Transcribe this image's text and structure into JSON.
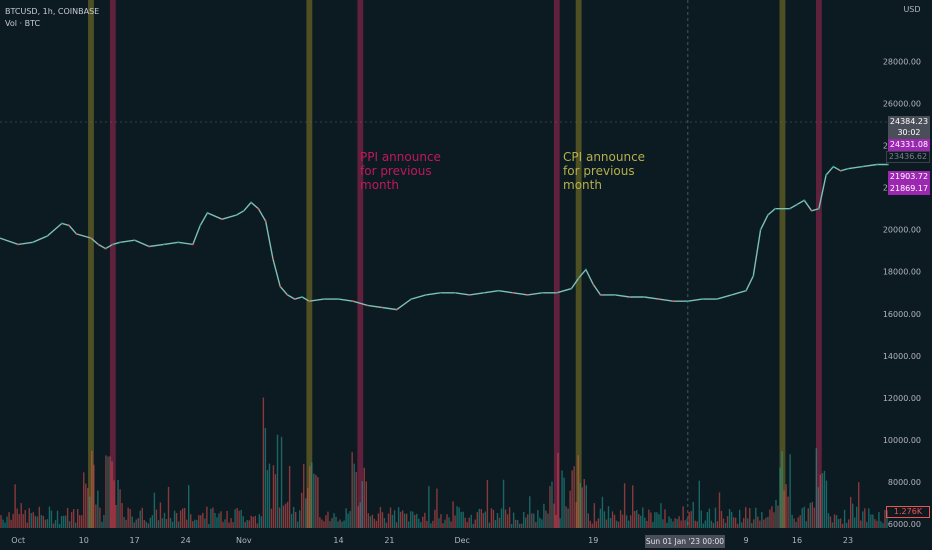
{
  "header": {
    "symbol_line": "BTCUSD, 1h, COINBASE",
    "volume_line": "Vol · BTC"
  },
  "colors": {
    "background": "#0c1a22",
    "ppi_band": "#6e2340",
    "cpi_band": "#5a5a24",
    "ppi_text": "#c2185b",
    "cpi_text": "#b5b04a",
    "up": "#26a69a",
    "down": "#ef5350",
    "tag_purple": "#9c27b0",
    "tag_gray": "#4a4e58"
  },
  "annotations": {
    "ppi": "PPI announce\nfor previous\nmonth",
    "cpi": "CPI announce\nfor previous\nmonth"
  },
  "price_tags": {
    "last_price": "24384.23",
    "countdown": "30:02",
    "tag_purple_1": "24331.08",
    "tag_gray": "23436.62",
    "tag_purple_2": "21903.72",
    "tag_purple_3": "21869.17",
    "volume_value": "1.276K"
  },
  "crosshair_label": "Sun 01 Jan '23   00:00",
  "chart_data": {
    "type": "line",
    "currency_label": "USD",
    "y_ticks": [
      "28000.00",
      "26000.00",
      "24000.00",
      "22000.00",
      "20000.00",
      "18000.00",
      "16000.00",
      "14000.00",
      "12000.00",
      "10000.00",
      "8000.00",
      "6000.00"
    ],
    "ylim": [
      6000,
      29500
    ],
    "x_ticks": [
      {
        "label": "Oct",
        "day": 0
      },
      {
        "label": "10",
        "day": 9
      },
      {
        "label": "17",
        "day": 16
      },
      {
        "label": "24",
        "day": 23
      },
      {
        "label": "Nov",
        "day": 31
      },
      {
        "label": "14",
        "day": 44
      },
      {
        "label": "21",
        "day": 51
      },
      {
        "label": "Dec",
        "day": 61
      },
      {
        "label": "19",
        "day": 79
      },
      {
        "label": "9",
        "day": 100
      },
      {
        "label": "16",
        "day": 107
      },
      {
        "label": "23",
        "day": 114
      }
    ],
    "xlim": [
      -2.5,
      119.5
    ],
    "crosshair_day": 92,
    "ppi_days": [
      13,
      47,
      74,
      110
    ],
    "cpi_days": [
      10,
      40,
      77,
      105
    ],
    "band_width_days": 0.8,
    "series": [
      {
        "points": [
          [
            -2.5,
            19600
          ],
          [
            0,
            19300
          ],
          [
            2,
            19400
          ],
          [
            4,
            19700
          ],
          [
            6,
            20300
          ],
          [
            7,
            20200
          ],
          [
            8,
            19800
          ],
          [
            10,
            19600
          ],
          [
            11,
            19300
          ],
          [
            12,
            19100
          ],
          [
            13,
            19300
          ],
          [
            14,
            19400
          ],
          [
            16,
            19500
          ],
          [
            18,
            19200
          ],
          [
            20,
            19300
          ],
          [
            22,
            19400
          ],
          [
            24,
            19300
          ],
          [
            25,
            20200
          ],
          [
            26,
            20800
          ],
          [
            28,
            20500
          ],
          [
            30,
            20700
          ],
          [
            31,
            20900
          ],
          [
            32,
            21300
          ],
          [
            33,
            21000
          ],
          [
            34,
            20400
          ],
          [
            35,
            18600
          ],
          [
            36,
            17300
          ],
          [
            37,
            16900
          ],
          [
            38,
            16700
          ],
          [
            39,
            16800
          ],
          [
            40,
            16600
          ],
          [
            42,
            16700
          ],
          [
            44,
            16700
          ],
          [
            46,
            16600
          ],
          [
            48,
            16400
          ],
          [
            50,
            16300
          ],
          [
            52,
            16200
          ],
          [
            54,
            16700
          ],
          [
            56,
            16900
          ],
          [
            58,
            17000
          ],
          [
            60,
            17000
          ],
          [
            62,
            16900
          ],
          [
            64,
            17000
          ],
          [
            66,
            17100
          ],
          [
            68,
            17000
          ],
          [
            70,
            16900
          ],
          [
            72,
            17000
          ],
          [
            74,
            17000
          ],
          [
            76,
            17200
          ],
          [
            77,
            17700
          ],
          [
            78,
            18100
          ],
          [
            79,
            17400
          ],
          [
            80,
            16900
          ],
          [
            82,
            16900
          ],
          [
            84,
            16800
          ],
          [
            86,
            16800
          ],
          [
            88,
            16700
          ],
          [
            90,
            16600
          ],
          [
            92,
            16600
          ],
          [
            94,
            16700
          ],
          [
            96,
            16700
          ],
          [
            98,
            16900
          ],
          [
            100,
            17100
          ],
          [
            101,
            17800
          ],
          [
            102,
            20000
          ],
          [
            103,
            20700
          ],
          [
            104,
            21000
          ],
          [
            106,
            21000
          ],
          [
            107,
            21200
          ],
          [
            108,
            21400
          ],
          [
            109,
            20900
          ],
          [
            110,
            21000
          ],
          [
            111,
            22600
          ],
          [
            112,
            23000
          ],
          [
            113,
            22800
          ],
          [
            114,
            22900
          ],
          [
            116,
            23000
          ],
          [
            118,
            23100
          ],
          [
            119.5,
            23100
          ]
        ]
      }
    ],
    "volume_note": "bars"
  }
}
